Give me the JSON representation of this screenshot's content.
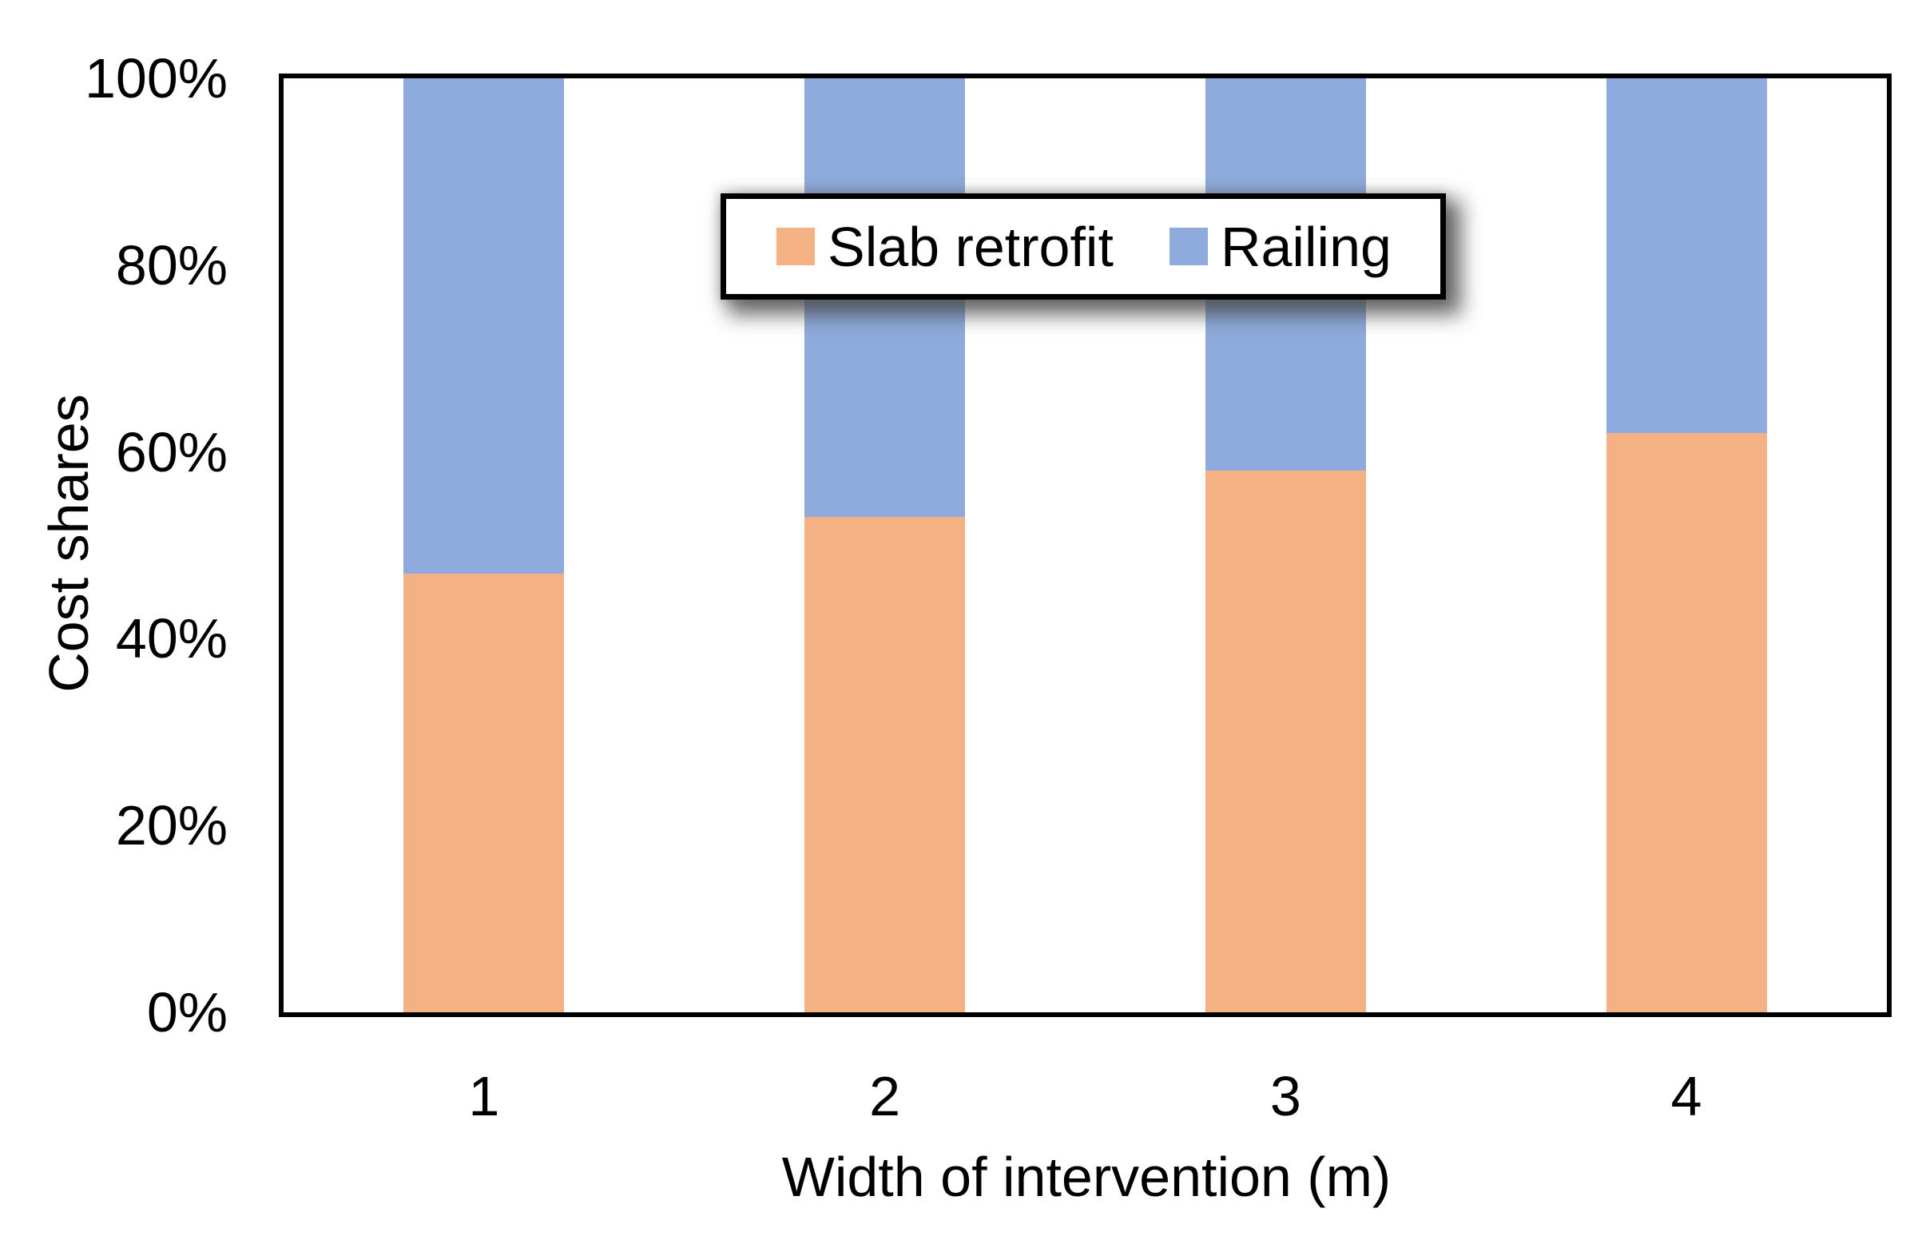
{
  "chart_data": {
    "type": "bar",
    "variant": "stacked-100-percent",
    "title": "",
    "categories": [
      "1",
      "2",
      "3",
      "4"
    ],
    "series": [
      {
        "name": "Slab retrofit",
        "color": "#F4B183",
        "values": [
          47,
          53,
          58,
          62
        ]
      },
      {
        "name": "Railing",
        "color": "#8FAADC",
        "values": [
          53,
          47,
          42,
          38
        ]
      }
    ],
    "xlabel": "Width of intervention (m)",
    "ylabel": "Cost shares",
    "ylim": [
      0,
      100
    ],
    "ytick_step": 20,
    "yticks": [
      "0%",
      "20%",
      "40%",
      "60%",
      "80%",
      "100%"
    ],
    "grid": false,
    "legend": {
      "position": "top-center-inset",
      "border_color": "#000000",
      "background": "#ffffff",
      "entries": [
        "Slab retrofit",
        "Railing"
      ]
    },
    "plot_border_color": "#000000",
    "bar_width_fraction": 0.4
  }
}
